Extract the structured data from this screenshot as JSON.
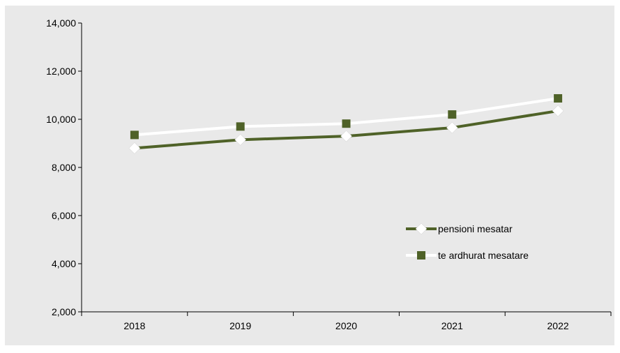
{
  "chart_data": {
    "type": "line",
    "categories": [
      "2018",
      "2019",
      "2020",
      "2021",
      "2022"
    ],
    "series": [
      {
        "name": "pensioni mesatar",
        "values": [
          8800,
          9150,
          9300,
          9650,
          10350
        ],
        "line_color": "#4f6228",
        "marker": "diamond",
        "marker_color": "#ffffff"
      },
      {
        "name": "te ardhurat mesatare",
        "values": [
          9350,
          9700,
          9820,
          10200,
          10870
        ],
        "line_color": "#ffffff",
        "marker": "square",
        "marker_color": "#4f6228"
      }
    ],
    "y_ticks": [
      "2,000",
      "4,000",
      "6,000",
      "8,000",
      "10,000",
      "12,000",
      "14,000"
    ],
    "ylim": [
      2000,
      14000
    ],
    "legend_position": "right-center inside plot",
    "plot_background": "#e9e9e9",
    "grid": false
  }
}
